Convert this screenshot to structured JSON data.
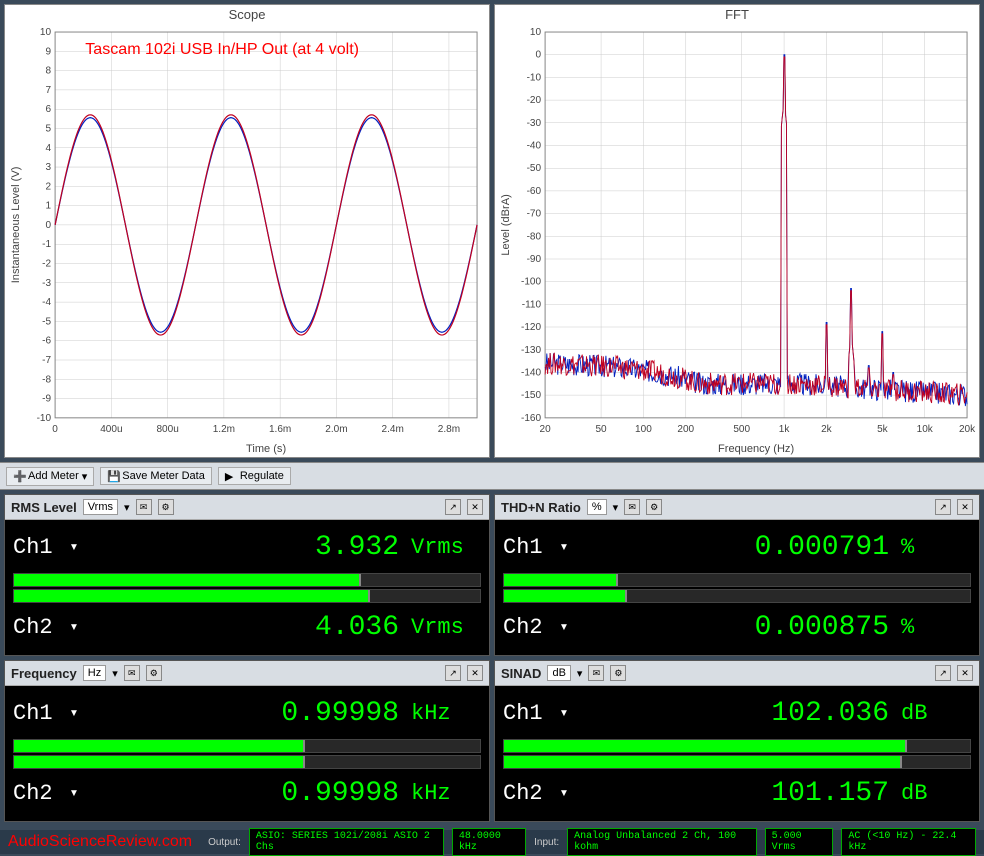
{
  "scope": {
    "title": "Scope",
    "annotation": "Tascam 102i USB In/HP Out (at 4 volt)",
    "xlabel": "Time (s)",
    "ylabel": "Instantaneous Level (V)",
    "xlim": [
      0,
      0.003
    ],
    "ylim": [
      -10,
      10
    ],
    "xticks": [
      "0",
      "400u",
      "800u",
      "1.2m",
      "1.6m",
      "2.0m",
      "2.4m",
      "2.8m"
    ],
    "xtick_vals": [
      0,
      400,
      800,
      1200,
      1600,
      2000,
      2400,
      2800
    ],
    "xtick_max": 3000,
    "yticks": [
      -10,
      -9,
      -8,
      -7,
      -6,
      -5,
      -4,
      -3,
      -2,
      -1,
      0,
      1,
      2,
      3,
      4,
      5,
      6,
      7,
      8,
      9,
      10
    ],
    "series": [
      {
        "color": "#0020c0",
        "amplitude": 5.56,
        "freq": 1000,
        "phase": 0
      },
      {
        "color": "#c00020",
        "amplitude": 5.71,
        "freq": 1000,
        "phase": 0
      }
    ],
    "bg": "#ffffff",
    "grid": "#cccccc"
  },
  "fft": {
    "title": "FFT",
    "xlabel": "Frequency (Hz)",
    "ylabel": "Level (dBrA)",
    "xlim": [
      20,
      20000
    ],
    "ylim": [
      -160,
      10
    ],
    "xticks": [
      "20",
      "50",
      "100",
      "200",
      "500",
      "1k",
      "2k",
      "5k",
      "10k",
      "20k"
    ],
    "xtick_vals": [
      20,
      50,
      100,
      200,
      500,
      1000,
      2000,
      5000,
      10000,
      20000
    ],
    "yticks": [
      -160,
      -150,
      -140,
      -130,
      -120,
      -110,
      -100,
      -90,
      -80,
      -70,
      -60,
      -50,
      -40,
      -30,
      -20,
      -10,
      0,
      10
    ],
    "noise_floor": -145,
    "noise_low_bump": -136,
    "peaks": [
      {
        "f": 1000,
        "db": 0
      },
      {
        "f": 2000,
        "db": -118
      },
      {
        "f": 3000,
        "db": -103
      },
      {
        "f": 4000,
        "db": -137
      },
      {
        "f": 5000,
        "db": -122
      },
      {
        "f": 6000,
        "db": -140
      }
    ],
    "series_colors": [
      "#0020c0",
      "#c00020"
    ],
    "bg": "#ffffff",
    "grid": "#cccccc"
  },
  "toolbar": {
    "add_meter": "Add Meter",
    "save_meter": "Save Meter Data",
    "regulate": "Regulate"
  },
  "meters": [
    {
      "name": "RMS Level",
      "unit_sel": "Vrms",
      "ch1_val": "3.932",
      "ch1_unit": "Vrms",
      "ch2_val": "4.036",
      "ch2_unit": "Vrms",
      "bar1": 74,
      "bar2": 76,
      "bar1b": 74,
      "bar2b": 76
    },
    {
      "name": "THD+N Ratio",
      "unit_sel": "%",
      "ch1_val": "0.000791",
      "ch1_unit": "%",
      "ch2_val": "0.000875",
      "ch2_unit": "%",
      "bar1": 24,
      "bar2": 26,
      "bar1b": 24,
      "bar2b": 26
    },
    {
      "name": "Frequency",
      "unit_sel": "Hz",
      "ch1_val": "0.99998",
      "ch1_unit": "kHz",
      "ch2_val": "0.99998",
      "ch2_unit": "kHz",
      "bar1": 62,
      "bar2": 62,
      "bar1b": 62,
      "bar2b": 62
    },
    {
      "name": "SINAD",
      "unit_sel": "dB",
      "ch1_val": "102.036",
      "ch1_unit": "dB",
      "ch2_val": "101.157",
      "ch2_unit": "dB",
      "bar1": 86,
      "bar2": 85,
      "bar1b": 86,
      "bar2b": 85
    }
  ],
  "ch_labels": {
    "ch1": "Ch1",
    "ch2": "Ch2"
  },
  "status": {
    "watermark": "AudioScienceReview.com",
    "output_label": "Output:",
    "output": "ASIO: SERIES 102i/208i ASIO 2 Chs",
    "srate": "48.0000 kHz",
    "input_label": "Input:",
    "input": "Analog Unbalanced 2 Ch, 100 kohm",
    "vrms": "5.000 Vrms",
    "ac": "AC (<10 Hz) - 22.4 kHz"
  }
}
